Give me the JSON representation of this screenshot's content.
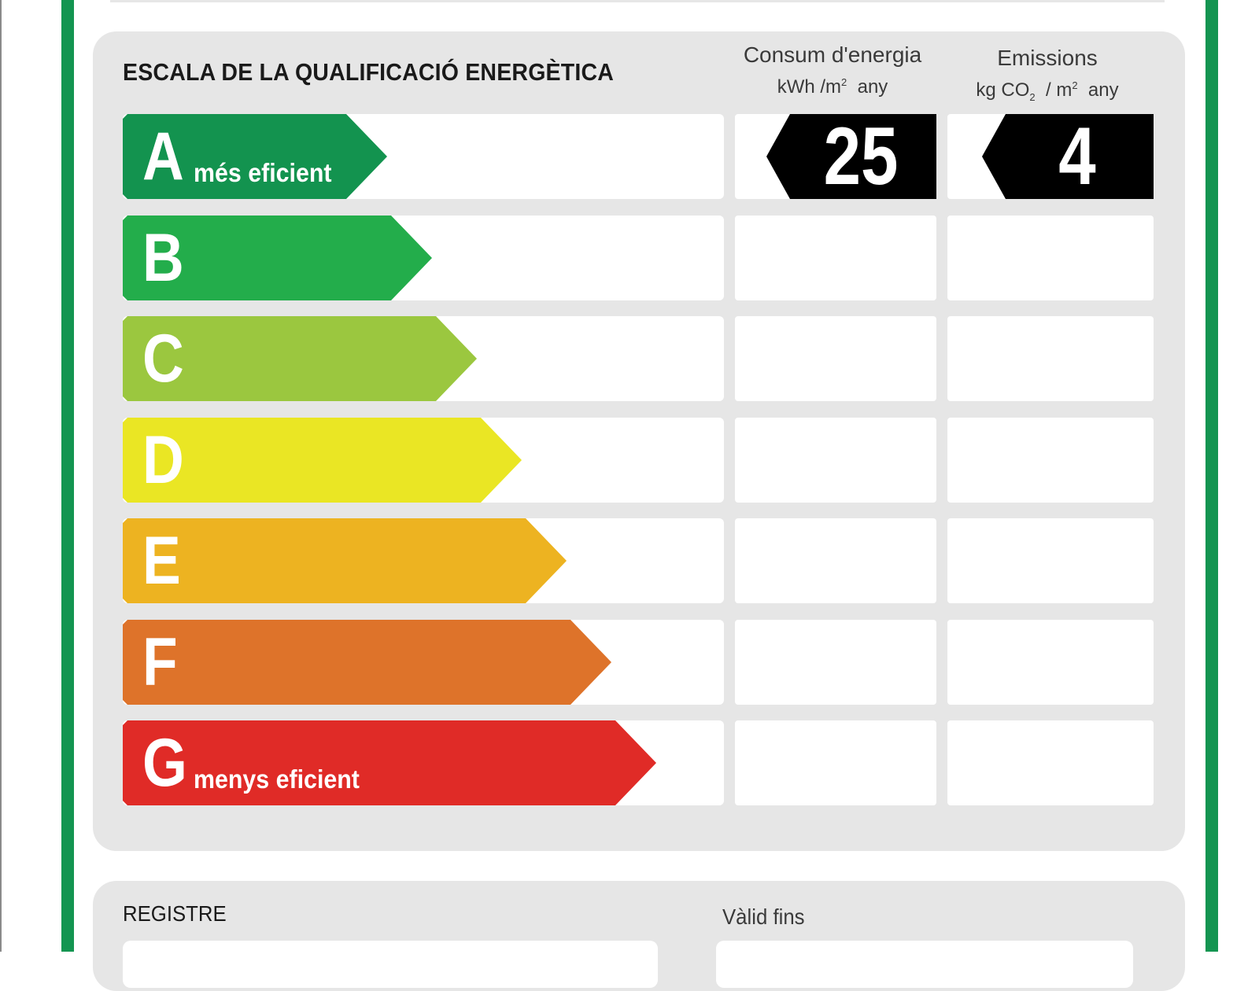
{
  "scale": {
    "title": "ESCALA DE LA QUALIFICACIÓ ENERGÈTICA",
    "columns": {
      "energy": {
        "title": "Consum d'energia",
        "unit_base": "kWh /m",
        "unit_sup": "2",
        "unit_suffix": "any"
      },
      "emissions": {
        "title": "Emissions",
        "unit_base_1": "kg CO",
        "unit_sub": "2",
        "unit_mid": "/ m",
        "unit_sup": "2",
        "unit_suffix": "any"
      }
    },
    "classes": [
      {
        "letter": "A",
        "caption": "més eficient",
        "color": "#13934f"
      },
      {
        "letter": "B",
        "caption": "",
        "color": "#23ad4b"
      },
      {
        "letter": "C",
        "caption": "",
        "color": "#9bc73f"
      },
      {
        "letter": "D",
        "caption": "",
        "color": "#eae624"
      },
      {
        "letter": "E",
        "caption": "",
        "color": "#edb321"
      },
      {
        "letter": "F",
        "caption": "",
        "color": "#de732a"
      },
      {
        "letter": "G",
        "caption": "menys eficient",
        "color": "#e02b27"
      }
    ],
    "rating": {
      "energy": {
        "class": "A",
        "value": "25"
      },
      "emissions": {
        "class": "A",
        "value": "4"
      }
    }
  },
  "registry": {
    "label": "REGISTRE",
    "valid_label": "Vàlid fins"
  },
  "colors": {
    "frame": "#149551",
    "panel": "#e6e6e6",
    "badge": "#000000"
  }
}
